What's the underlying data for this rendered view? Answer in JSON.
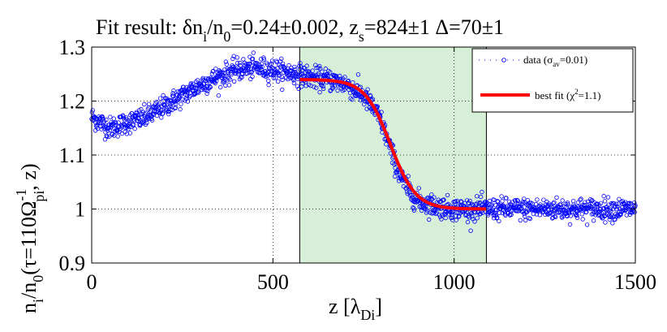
{
  "chart_data": {
    "type": "scatter",
    "title": {
      "prefix": "Fit result: ",
      "delta_symbol": "δ",
      "n1": "n",
      "n1_sub": "i",
      "slash": "/n",
      "n2_sub": "0",
      "ratio_value": "=0.24±0.002, z",
      "zs_sub": "s",
      "zs_value": "=824±1  Δ=70±1"
    },
    "xlabel": {
      "main": "z [λ",
      "sub": "Di",
      "close": "]"
    },
    "ylabel": {
      "n": "n",
      "n_sub": "i",
      "slash": "/n",
      "n0_sub": "0",
      "paren": "(τ=110Ω",
      "omega_sup": "-1",
      "omega_sub": "pi",
      "tail": ", z)"
    },
    "xlim": [
      0,
      1500
    ],
    "ylim": [
      0.9,
      1.3
    ],
    "xticks": [
      0,
      500,
      1000,
      1500
    ],
    "xtick_labels": [
      "0",
      "500",
      "1000",
      "1500"
    ],
    "yticks": [
      0.9,
      1.0,
      1.1,
      1.2,
      1.3
    ],
    "ytick_labels": [
      "0.9",
      "1",
      "1.1",
      "1.2",
      "1.3"
    ],
    "grid": "dotted",
    "shaded_region": {
      "x_range": [
        574,
        1089
      ],
      "color": "#d6efd6"
    },
    "series": [
      {
        "name": "data",
        "kind": "markers",
        "color": "#0000ff",
        "noise_sigma": 0.01,
        "profile_x": [
          0,
          25,
          50,
          100,
          150,
          200,
          250,
          300,
          350,
          400,
          450,
          500,
          550,
          600,
          650,
          700,
          750,
          780,
          800,
          820,
          840,
          860,
          880,
          900,
          950,
          1000,
          1100,
          1200,
          1300,
          1400,
          1500
        ],
        "profile_y": [
          1.17,
          1.16,
          1.15,
          1.16,
          1.17,
          1.19,
          1.21,
          1.23,
          1.245,
          1.258,
          1.262,
          1.258,
          1.252,
          1.245,
          1.24,
          1.232,
          1.21,
          1.185,
          1.16,
          1.12,
          1.08,
          1.05,
          1.03,
          1.015,
          1.005,
          1.0,
          1.0,
          1.0,
          1.0,
          1.0,
          1.0
        ]
      },
      {
        "name": "best fit",
        "kind": "line",
        "color": "#ff0000",
        "x_range": [
          574,
          1089
        ],
        "model": {
          "n_base": 1.0,
          "amplitude": 0.24,
          "z_s": 824,
          "delta": 70
        }
      }
    ],
    "legend": {
      "position": "top-right",
      "entries": [
        {
          "label_pre": "data (σ",
          "label_sub": "av",
          "label_post": "=0.01)"
        },
        {
          "label_pre": "best fit (χ",
          "label_sup": "2",
          "label_post": "=1.1)"
        }
      ]
    }
  }
}
